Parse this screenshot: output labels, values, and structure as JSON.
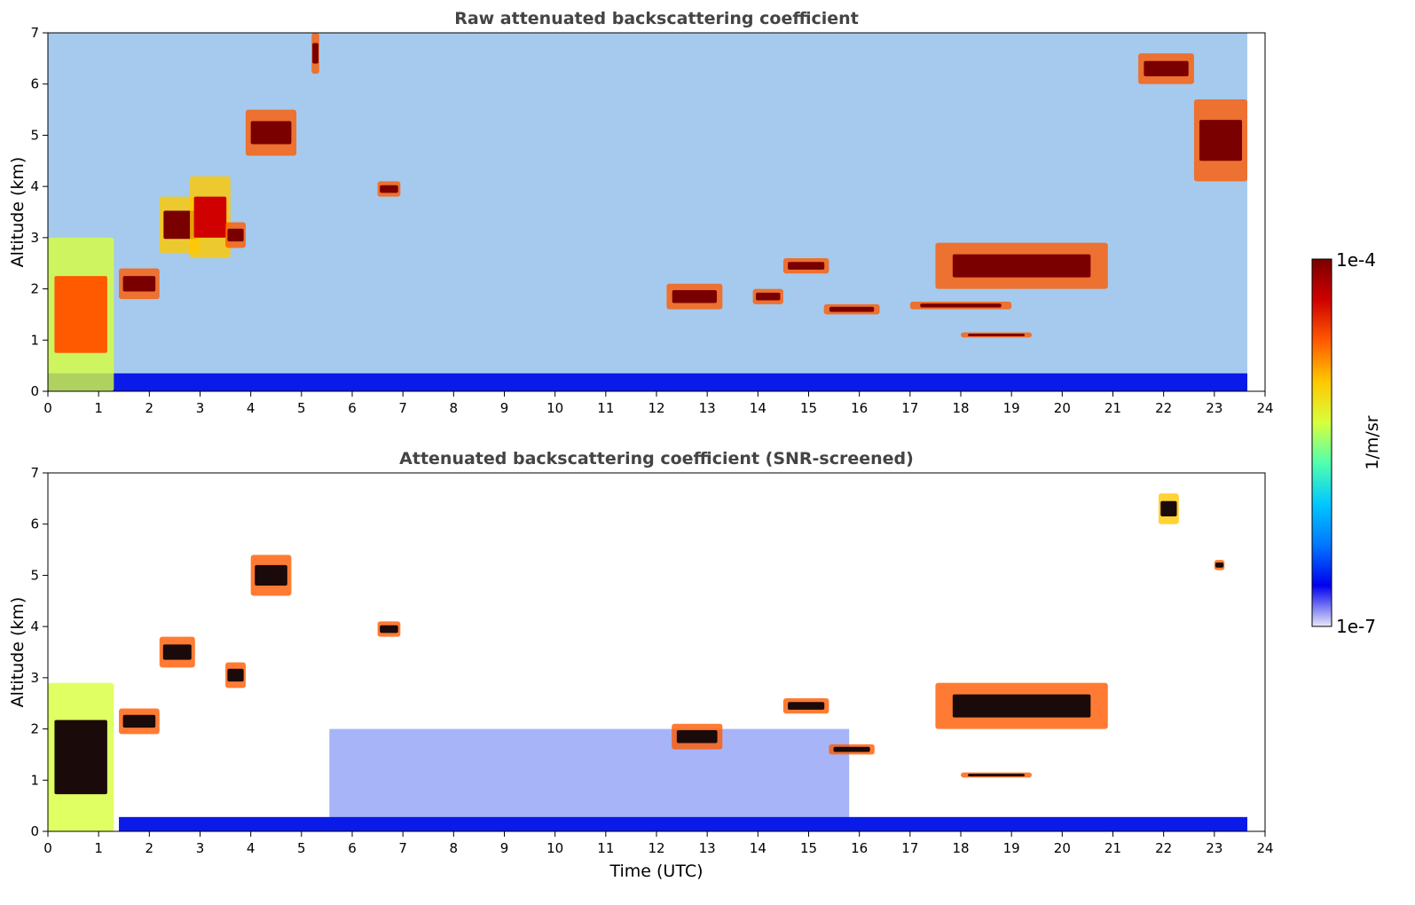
{
  "chart_data": [
    {
      "type": "heatmap",
      "title": "Raw attenuated backscattering coefficient",
      "xlabel": "",
      "ylabel": "Altitude (km)",
      "xlim": [
        0,
        24
      ],
      "ylim": [
        0,
        7
      ],
      "xticks": [
        "0",
        "1",
        "2",
        "3",
        "4",
        "5",
        "6",
        "7",
        "8",
        "9",
        "10",
        "11",
        "12",
        "13",
        "14",
        "15",
        "16",
        "17",
        "18",
        "19",
        "20",
        "21",
        "22",
        "23",
        "24"
      ],
      "yticks": [
        "0",
        "1",
        "2",
        "3",
        "4",
        "5",
        "6",
        "7"
      ],
      "data_end_hour": 23.65,
      "boundary_layer_top_km": 0.35,
      "cloud_layers": [
        {
          "t0": 0.0,
          "t1": 1.3,
          "z0": 0.0,
          "z1": 3.0,
          "level": 0.75
        },
        {
          "t0": 1.4,
          "t1": 2.2,
          "z0": 1.8,
          "z1": 2.4,
          "level": 1.0
        },
        {
          "t0": 2.2,
          "t1": 3.0,
          "z0": 2.7,
          "z1": 3.8,
          "level": 0.9
        },
        {
          "t0": 2.8,
          "t1": 3.6,
          "z0": 2.6,
          "z1": 4.2,
          "level": 0.85
        },
        {
          "t0": 3.5,
          "t1": 3.9,
          "z0": 2.8,
          "z1": 3.3,
          "level": 1.0
        },
        {
          "t0": 3.9,
          "t1": 4.9,
          "z0": 4.6,
          "z1": 5.5,
          "level": 1.0
        },
        {
          "t0": 5.2,
          "t1": 5.35,
          "z0": 6.2,
          "z1": 7.0,
          "level": 0.95
        },
        {
          "t0": 6.5,
          "t1": 6.95,
          "z0": 3.8,
          "z1": 4.1,
          "level": 1.0
        },
        {
          "t0": 12.2,
          "t1": 13.3,
          "z0": 1.6,
          "z1": 2.1,
          "level": 1.0
        },
        {
          "t0": 13.9,
          "t1": 14.5,
          "z0": 1.7,
          "z1": 2.0,
          "level": 1.0
        },
        {
          "t0": 14.5,
          "t1": 15.4,
          "z0": 2.3,
          "z1": 2.6,
          "level": 1.0
        },
        {
          "t0": 15.3,
          "t1": 16.4,
          "z0": 1.5,
          "z1": 1.7,
          "level": 1.0
        },
        {
          "t0": 17.0,
          "t1": 19.0,
          "z0": 1.6,
          "z1": 1.75,
          "level": 1.0
        },
        {
          "t0": 17.5,
          "t1": 20.9,
          "z0": 2.0,
          "z1": 2.9,
          "level": 1.0
        },
        {
          "t0": 18.0,
          "t1": 19.4,
          "z0": 1.05,
          "z1": 1.15,
          "level": 1.0
        },
        {
          "t0": 21.5,
          "t1": 22.6,
          "z0": 6.0,
          "z1": 6.6,
          "level": 1.0
        },
        {
          "t0": 22.6,
          "t1": 23.65,
          "z0": 4.1,
          "z1": 5.7,
          "level": 1.0
        }
      ]
    },
    {
      "type": "heatmap",
      "title": "Attenuated backscattering coefficient (SNR-screened)",
      "xlabel": "Time (UTC)",
      "ylabel": "Altitude (km)",
      "xlim": [
        0,
        24
      ],
      "ylim": [
        0,
        7
      ],
      "xticks": [
        "0",
        "1",
        "2",
        "3",
        "4",
        "5",
        "6",
        "7",
        "8",
        "9",
        "10",
        "11",
        "12",
        "13",
        "14",
        "15",
        "16",
        "17",
        "18",
        "19",
        "20",
        "21",
        "22",
        "23",
        "24"
      ],
      "yticks": [
        "0",
        "1",
        "2",
        "3",
        "4",
        "5",
        "6",
        "7"
      ],
      "data_end_hour": 23.65,
      "screened_noise_region": {
        "t0": 5.55,
        "t1": 15.8,
        "z1": 2.0
      },
      "cloud_layers": [
        {
          "t0": 0.0,
          "t1": 1.3,
          "z0": 0.0,
          "z1": 2.9,
          "level": 0.75
        },
        {
          "t0": 1.4,
          "t1": 2.2,
          "z0": 1.9,
          "z1": 2.4,
          "level": 1.0
        },
        {
          "t0": 2.2,
          "t1": 2.9,
          "z0": 3.2,
          "z1": 3.8,
          "level": 1.0
        },
        {
          "t0": 3.5,
          "t1": 3.9,
          "z0": 2.8,
          "z1": 3.3,
          "level": 1.0
        },
        {
          "t0": 4.0,
          "t1": 4.8,
          "z0": 4.6,
          "z1": 5.4,
          "level": 1.0
        },
        {
          "t0": 6.5,
          "t1": 6.95,
          "z0": 3.8,
          "z1": 4.1,
          "level": 1.0
        },
        {
          "t0": 12.3,
          "t1": 13.3,
          "z0": 1.6,
          "z1": 2.1,
          "level": 1.0
        },
        {
          "t0": 14.5,
          "t1": 15.4,
          "z0": 2.3,
          "z1": 2.6,
          "level": 1.0
        },
        {
          "t0": 15.4,
          "t1": 16.3,
          "z0": 1.5,
          "z1": 1.7,
          "level": 1.0
        },
        {
          "t0": 17.5,
          "t1": 20.9,
          "z0": 2.0,
          "z1": 2.9,
          "level": 1.0
        },
        {
          "t0": 18.0,
          "t1": 19.4,
          "z0": 1.05,
          "z1": 1.15,
          "level": 1.0
        },
        {
          "t0": 21.9,
          "t1": 22.3,
          "z0": 6.0,
          "z1": 6.6,
          "level": 0.9
        },
        {
          "t0": 23.0,
          "t1": 23.2,
          "z0": 5.1,
          "z1": 5.3,
          "level": 1.0
        }
      ]
    }
  ],
  "colorbar": {
    "label": "1/m/sr",
    "max_label": "1e-4",
    "min_label": "1e-7",
    "range": [
      1e-07,
      0.0001
    ],
    "scale": "log"
  },
  "colors": {
    "colormap": [
      "#e8e8f8",
      "#0000ee",
      "#0078ff",
      "#00c8ff",
      "#50ffb0",
      "#d8ff3c",
      "#ffc800",
      "#ff5a00",
      "#d00000",
      "#7a0000"
    ],
    "cloud_core": "#1a0a0a"
  }
}
